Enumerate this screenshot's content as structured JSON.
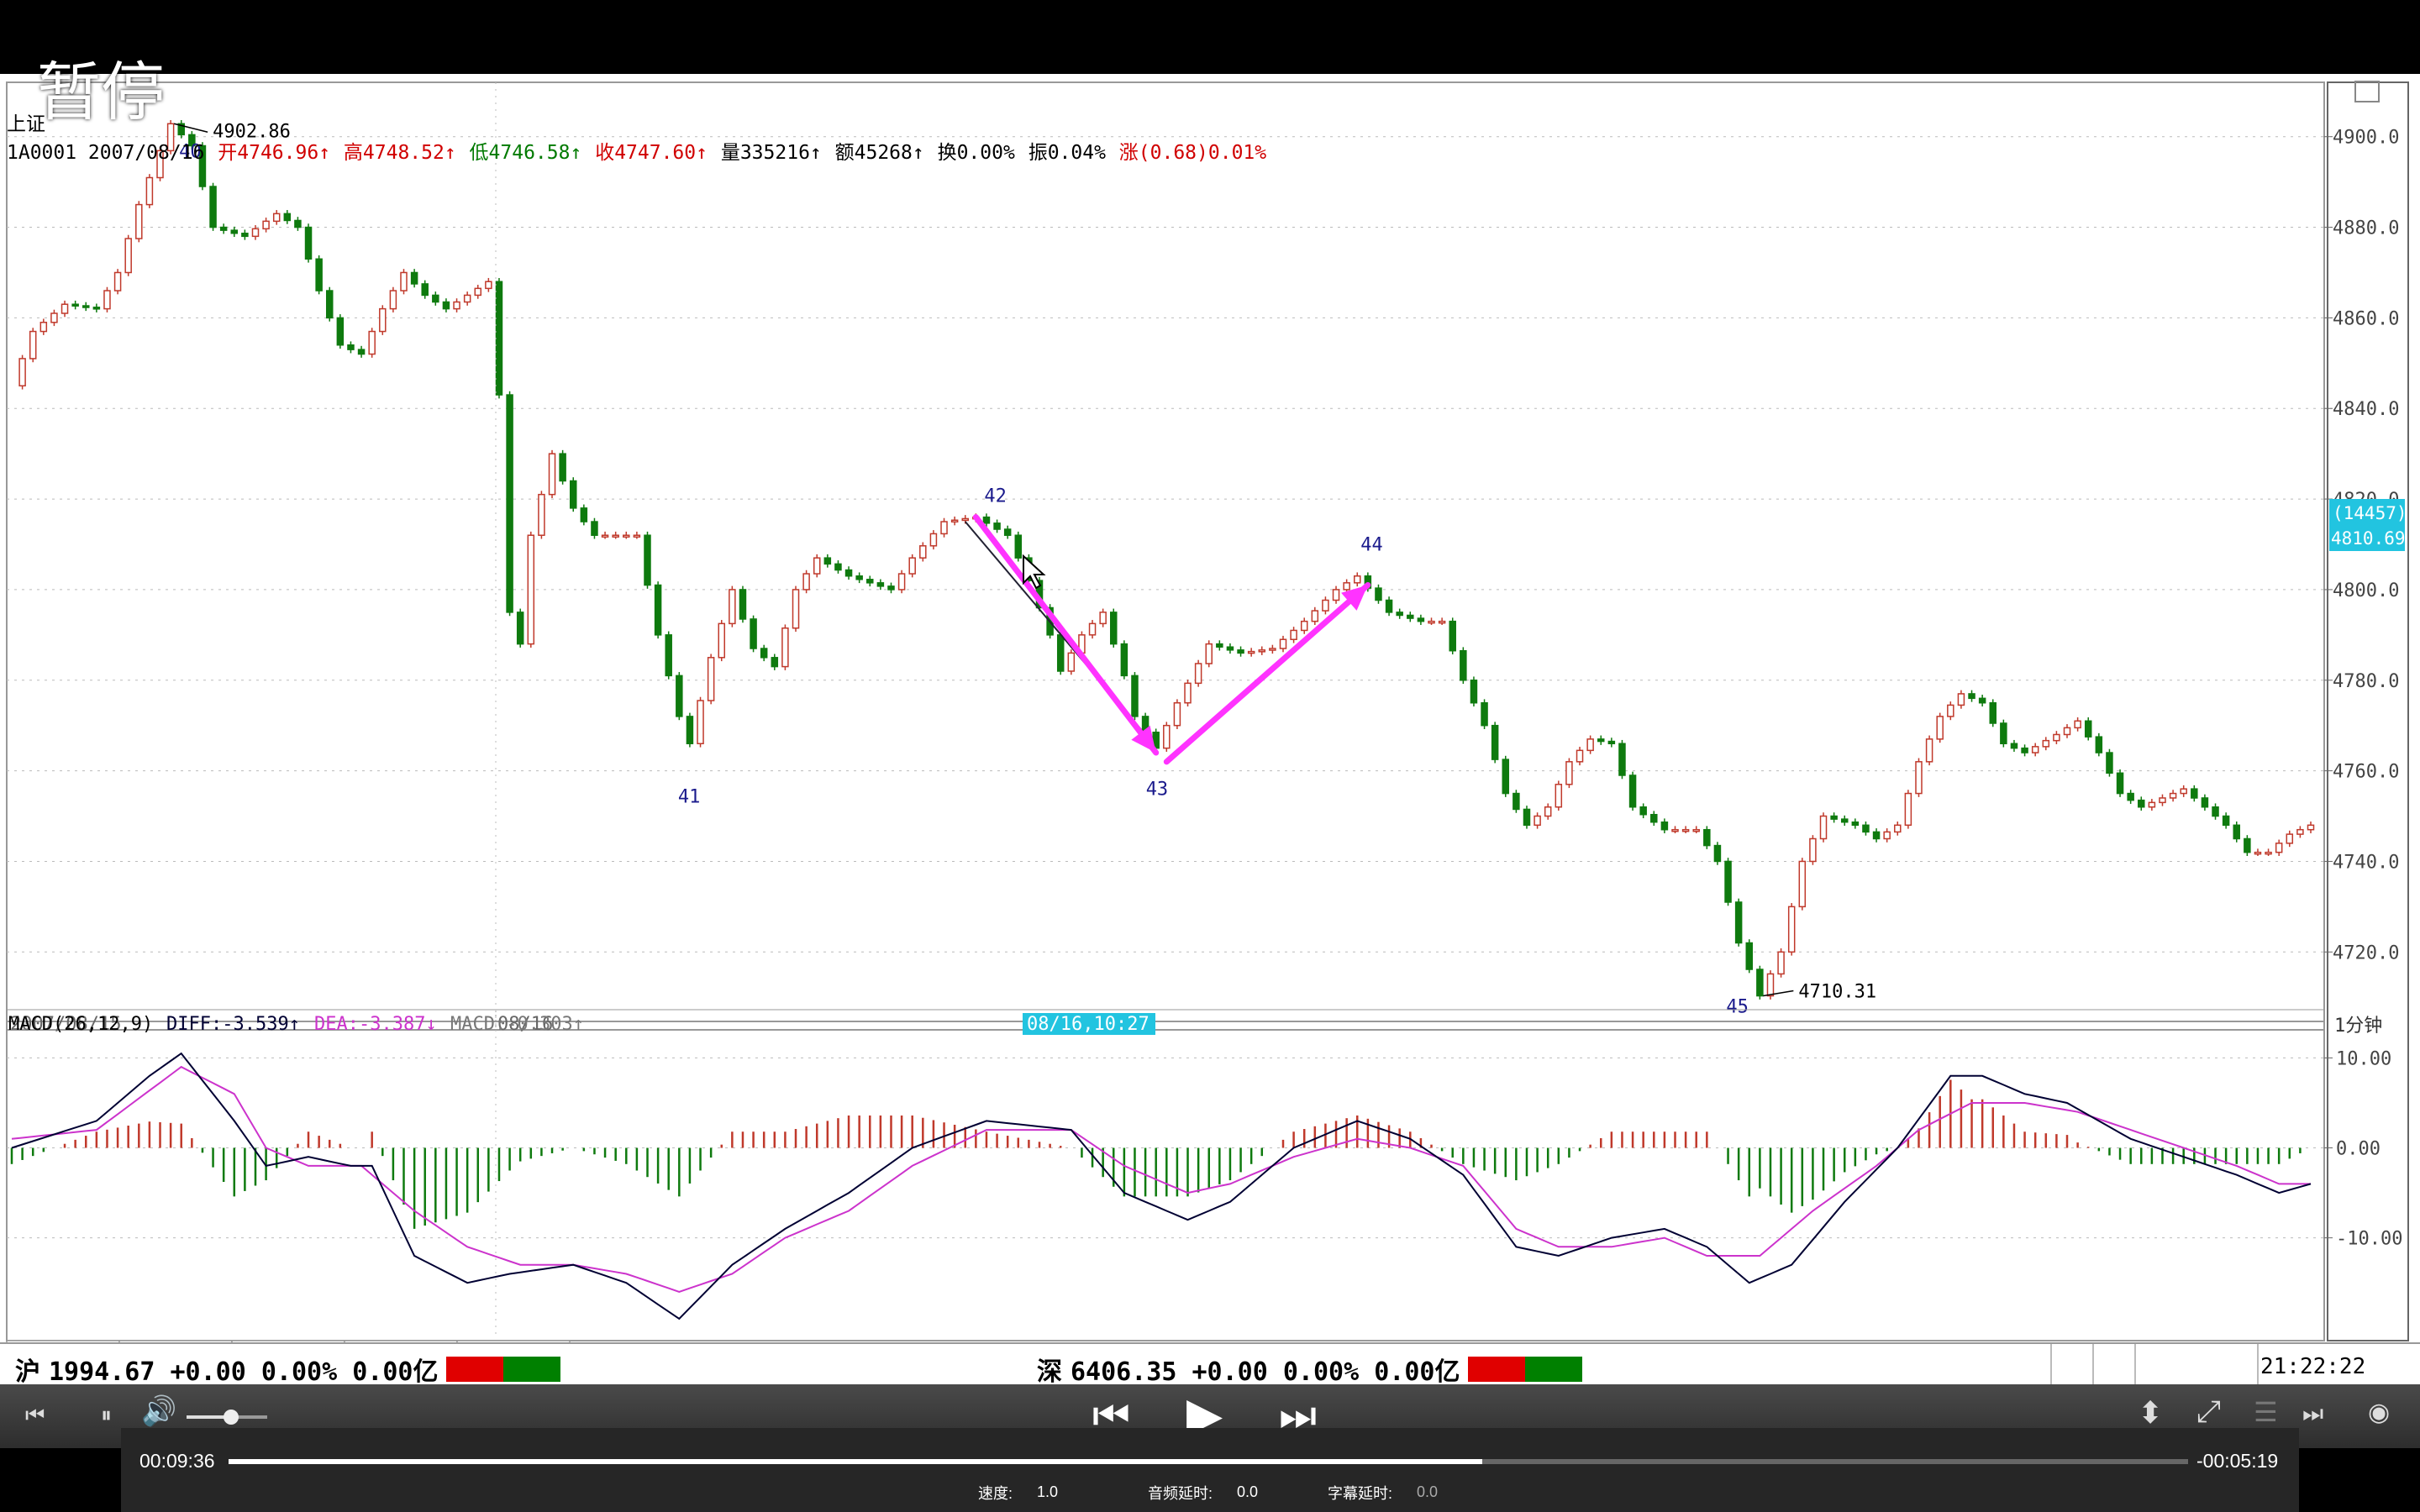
{
  "overlay": {
    "pause_text": "暂停"
  },
  "header": {
    "symbol": "上证",
    "code_date": "1A0001 2007/08/16",
    "open": "开4746.96↑",
    "high": "高4748.52↑",
    "low": "低4746.58↑",
    "close": "收4747.60↑",
    "volume": "量335216↑",
    "amount": "额45268↑",
    "turnover": "换0.00%",
    "amplitude": "振0.04%",
    "change": "涨(0.68)0.01%"
  },
  "price_axis": {
    "ticks": [
      "4900.0",
      "4880.0",
      "4860.0",
      "4840.0",
      "4820.0",
      "4800.0",
      "4780.0",
      "4760.0",
      "4740.0",
      "4720.0"
    ],
    "cursor_volume": "(14457)",
    "cursor_price": "4810.69"
  },
  "wave_labels": [
    "40",
    "41",
    "42",
    "43",
    "44",
    "45"
  ],
  "annotations": {
    "high": "4902.86",
    "low": "4710.31"
  },
  "time_axis": {
    "start": "2007/08/15",
    "mid": "08/16",
    "cursor": "08/16,10:27",
    "period": "1分钟"
  },
  "macd": {
    "title": "MACD(26,12,9)",
    "diff": "DIFF:-3.539↑",
    "dea": "DEA:-3.387↓",
    "macd": "MACD:-0.303↑",
    "ticks": [
      "10.00",
      "0.00",
      "-10.00"
    ]
  },
  "indicator_tabs": [
    "MA",
    "BOLL",
    "MACD",
    "RSI",
    "DMI"
  ],
  "status_bar": {
    "sh_label": "沪",
    "sh_value": "1994.67 +0.00 0.00% 0.00亿",
    "sz_label": "深",
    "sz_value": "6406.35 +0.00 0.00% 0.00亿",
    "time": "21:22:22"
  },
  "player": {
    "elapsed": "00:09:36",
    "remaining": "-00:05:19",
    "progress": 0.64,
    "volume_level": 0.55,
    "speed_label": "速度:",
    "speed_value": "1.0",
    "audio_delay_label": "音频延时:",
    "audio_delay_value": "0.0",
    "subtitle_delay_label": "字幕延时:",
    "subtitle_delay_value": "0.0"
  },
  "colors": {
    "up": "#c0392b",
    "down": "#0e7a0e",
    "diff_line": "#000033",
    "dea_line": "#cc33cc",
    "arrow": "#ff33ff",
    "cursor_box": "#22c4e0",
    "wave_label": "#1a1a8c"
  },
  "chart_data": {
    "type": "candlestick",
    "timeframe": "1分钟",
    "ylim": [
      4708,
      4912
    ],
    "price_path": [
      [
        0,
        4845
      ],
      [
        2,
        4857
      ],
      [
        5,
        4863
      ],
      [
        8,
        4862
      ],
      [
        10,
        4870
      ],
      [
        12,
        4885
      ],
      [
        15,
        4902.86
      ],
      [
        17,
        4898
      ],
      [
        19,
        4880
      ],
      [
        22,
        4878
      ],
      [
        25,
        4883
      ],
      [
        27,
        4880
      ],
      [
        29,
        4866
      ],
      [
        31,
        4854
      ],
      [
        33,
        4852
      ],
      [
        35,
        4862
      ],
      [
        37,
        4870
      ],
      [
        39,
        4865
      ],
      [
        41,
        4862
      ],
      [
        45,
        4868
      ],
      [
        46,
        4843
      ],
      [
        47,
        4795
      ],
      [
        48,
        4788
      ],
      [
        49,
        4812
      ],
      [
        51,
        4830
      ],
      [
        53,
        4818
      ],
      [
        55,
        4812
      ],
      [
        59,
        4812
      ],
      [
        61,
        4790
      ],
      [
        63,
        4772
      ],
      [
        64,
        4766
      ],
      [
        66,
        4785
      ],
      [
        68,
        4800
      ],
      [
        70,
        4787
      ],
      [
        72,
        4783
      ],
      [
        74,
        4800
      ],
      [
        76,
        4807
      ],
      [
        79,
        4803
      ],
      [
        83,
        4800
      ],
      [
        85,
        4807
      ],
      [
        88,
        4815
      ],
      [
        91,
        4816
      ],
      [
        94,
        4812
      ],
      [
        96,
        4802
      ],
      [
        98,
        4790
      ],
      [
        99,
        4782
      ],
      [
        101,
        4790
      ],
      [
        103,
        4795
      ],
      [
        105,
        4781
      ],
      [
        106,
        4772
      ],
      [
        108,
        4765
      ],
      [
        110,
        4775
      ],
      [
        113,
        4788
      ],
      [
        116,
        4786
      ],
      [
        119,
        4787
      ],
      [
        122,
        4793
      ],
      [
        125,
        4800
      ],
      [
        127,
        4803
      ],
      [
        130,
        4795
      ],
      [
        133,
        4793
      ],
      [
        135,
        4793
      ],
      [
        137,
        4780
      ],
      [
        139,
        4770
      ],
      [
        141,
        4755
      ],
      [
        143,
        4748
      ],
      [
        145,
        4752
      ],
      [
        147,
        4762
      ],
      [
        149,
        4767
      ],
      [
        151,
        4766
      ],
      [
        153,
        4752
      ],
      [
        156,
        4747
      ],
      [
        159,
        4747
      ],
      [
        161,
        4740
      ],
      [
        163,
        4722
      ],
      [
        165,
        4710.31
      ],
      [
        167,
        4720
      ],
      [
        169,
        4740
      ],
      [
        171,
        4750
      ],
      [
        174,
        4748
      ],
      [
        176,
        4745
      ],
      [
        178,
        4748
      ],
      [
        180,
        4762
      ],
      [
        182,
        4772
      ],
      [
        184,
        4777
      ],
      [
        186,
        4775
      ],
      [
        188,
        4766
      ],
      [
        190,
        4764
      ],
      [
        193,
        4768
      ],
      [
        195,
        4771
      ],
      [
        197,
        4764
      ],
      [
        199,
        4755
      ],
      [
        201,
        4752
      ],
      [
        203,
        4754
      ],
      [
        205,
        4756
      ],
      [
        207,
        4752
      ],
      [
        209,
        4748
      ],
      [
        211,
        4742
      ],
      [
        213,
        4742
      ],
      [
        215,
        4746
      ],
      [
        217,
        4748
      ]
    ],
    "macd_series": {
      "diff": [
        [
          0,
          0
        ],
        [
          8,
          3
        ],
        [
          13,
          8
        ],
        [
          16,
          10.5
        ],
        [
          21,
          3
        ],
        [
          24,
          -2
        ],
        [
          28,
          -1
        ],
        [
          32,
          -2
        ],
        [
          34,
          -2
        ],
        [
          38,
          -12
        ],
        [
          43,
          -15
        ],
        [
          47,
          -14
        ],
        [
          53,
          -13
        ],
        [
          58,
          -15
        ],
        [
          63,
          -19
        ],
        [
          68,
          -13
        ],
        [
          73,
          -9
        ],
        [
          79,
          -5
        ],
        [
          85,
          0
        ],
        [
          92,
          3
        ],
        [
          100,
          2
        ],
        [
          105,
          -5
        ],
        [
          111,
          -8
        ],
        [
          115,
          -6
        ],
        [
          121,
          0
        ],
        [
          127,
          3
        ],
        [
          132,
          1
        ],
        [
          137,
          -3
        ],
        [
          142,
          -11
        ],
        [
          146,
          -12
        ],
        [
          151,
          -10
        ],
        [
          156,
          -9
        ],
        [
          160,
          -11
        ],
        [
          164,
          -15
        ],
        [
          168,
          -13
        ],
        [
          173,
          -6
        ],
        [
          178,
          0
        ],
        [
          183,
          8
        ],
        [
          186,
          8
        ],
        [
          190,
          6
        ],
        [
          194,
          5
        ],
        [
          200,
          1
        ],
        [
          205,
          -1
        ],
        [
          210,
          -3
        ],
        [
          214,
          -5
        ],
        [
          217,
          -4
        ]
      ],
      "dea": [
        [
          0,
          1
        ],
        [
          8,
          2
        ],
        [
          16,
          9
        ],
        [
          21,
          6
        ],
        [
          24,
          0
        ],
        [
          28,
          -2
        ],
        [
          33,
          -2
        ],
        [
          38,
          -7
        ],
        [
          43,
          -11
        ],
        [
          48,
          -13
        ],
        [
          53,
          -13
        ],
        [
          58,
          -14
        ],
        [
          63,
          -16
        ],
        [
          68,
          -14
        ],
        [
          73,
          -10
        ],
        [
          79,
          -7
        ],
        [
          85,
          -2
        ],
        [
          92,
          2
        ],
        [
          100,
          2
        ],
        [
          105,
          -2
        ],
        [
          111,
          -5
        ],
        [
          115,
          -4
        ],
        [
          121,
          -1
        ],
        [
          127,
          1
        ],
        [
          132,
          0
        ],
        [
          137,
          -2
        ],
        [
          142,
          -9
        ],
        [
          146,
          -11
        ],
        [
          151,
          -11
        ],
        [
          156,
          -10
        ],
        [
          160,
          -12
        ],
        [
          165,
          -12
        ],
        [
          170,
          -7
        ],
        [
          176,
          -2
        ],
        [
          180,
          2
        ],
        [
          185,
          5
        ],
        [
          190,
          5
        ],
        [
          195,
          4
        ],
        [
          200,
          2
        ],
        [
          205,
          0
        ],
        [
          210,
          -2
        ],
        [
          214,
          -4
        ],
        [
          217,
          -4
        ]
      ]
    },
    "macd_ylim": [
      -19,
      12
    ],
    "wave_points": [
      {
        "label": "40",
        "i": 15,
        "price": 4902.86
      },
      {
        "label": "41",
        "i": 64,
        "price": 4766
      },
      {
        "label": "42",
        "i": 91,
        "price": 4816
      },
      {
        "label": "43",
        "i": 108,
        "price": 4765
      },
      {
        "label": "44",
        "i": 127,
        "price": 4803
      },
      {
        "label": "45",
        "i": 165,
        "price": 4710.31
      }
    ],
    "arrows": [
      {
        "from": [
          91,
          4816
        ],
        "to": [
          108,
          4764
        ]
      },
      {
        "from": [
          109,
          4762
        ],
        "to": [
          128,
          4801
        ]
      }
    ]
  }
}
